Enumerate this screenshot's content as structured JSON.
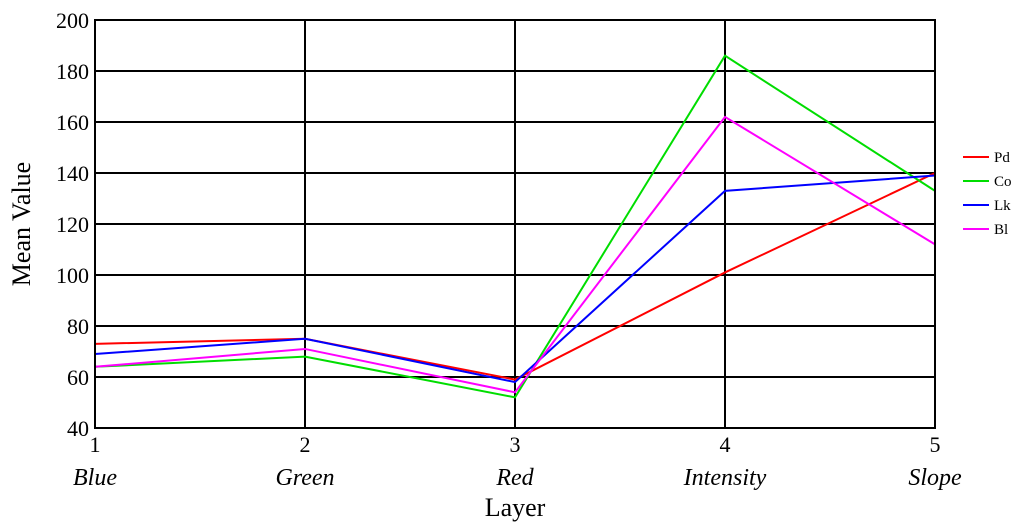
{
  "chart_data": {
    "type": "line",
    "title": "",
    "xlabel": "Layer",
    "ylabel": "Mean Value",
    "x": [
      1,
      2,
      3,
      4,
      5
    ],
    "x_tick_labels": [
      "1",
      "2",
      "3",
      "4",
      "5"
    ],
    "categories": [
      "Blue",
      "Green",
      "Red",
      "Intensity",
      "Slope"
    ],
    "ylim": [
      40,
      200
    ],
    "y_ticks": [
      40,
      60,
      80,
      100,
      120,
      140,
      160,
      180,
      200
    ],
    "grid": true,
    "legend_position": "right",
    "series": [
      {
        "name": "Pd",
        "color": "#ff0000",
        "values": [
          73,
          75,
          59,
          101,
          140
        ]
      },
      {
        "name": "Co",
        "color": "#00dd00",
        "values": [
          64,
          68,
          52,
          186,
          133
        ]
      },
      {
        "name": "Lk",
        "color": "#0000ff",
        "values": [
          69,
          75,
          58,
          133,
          139
        ]
      },
      {
        "name": "Bl",
        "color": "#ff00ff",
        "values": [
          64,
          71,
          54,
          162,
          112
        ]
      }
    ]
  }
}
